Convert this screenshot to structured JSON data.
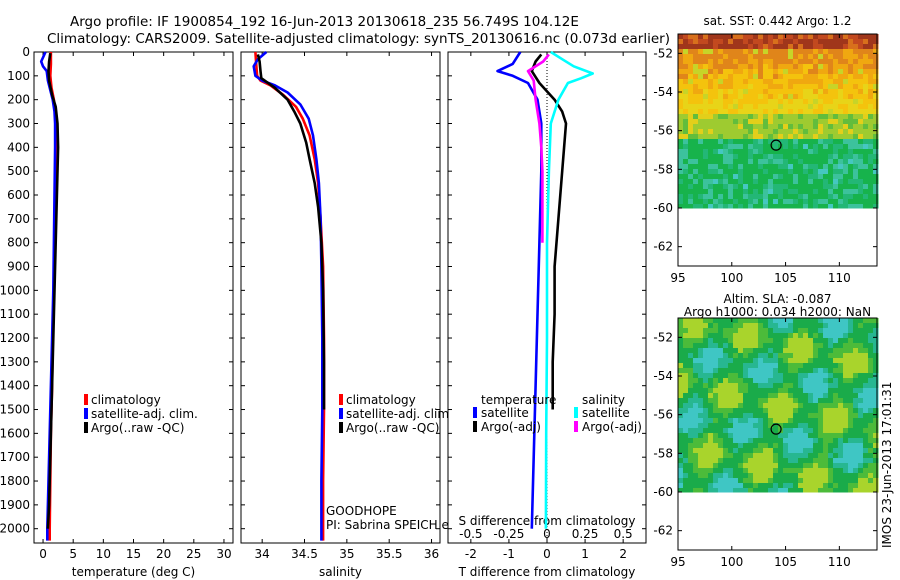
{
  "title_line1": "Argo profile: IF 1900854_192 16-Jun-2013 20130618_235 56.749S 104.12E",
  "title_line2": "Climatology: CARS2009. Satellite-adjusted climatology: synTS_20130616.nc (0.073d earlier)",
  "colors": {
    "climatology": "#ff0000",
    "satellite": "#0000ff",
    "argo": "#000000",
    "satellite_s": "#00ffff",
    "argo_s": "#ff00ff"
  },
  "chart_data": [
    {
      "id": "temperature",
      "type": "line",
      "xlabel": "temperature (deg C)",
      "xlim": [
        -1.5,
        31.5
      ],
      "xticks": [
        0,
        5,
        10,
        15,
        20,
        25,
        30
      ],
      "ylim": [
        0,
        2060
      ],
      "yticks": [
        0,
        100,
        200,
        300,
        400,
        500,
        600,
        700,
        800,
        900,
        1000,
        1100,
        1200,
        1300,
        1400,
        1500,
        1600,
        1700,
        1800,
        1900,
        2000
      ],
      "legend": [
        "climatology",
        "satellite-adj. clim.",
        "Argo(..raw -QC)"
      ],
      "series": [
        {
          "name": "climatology",
          "color": "#ff0000",
          "points": [
            [
              1.3,
              0
            ],
            [
              1.3,
              50
            ],
            [
              1.2,
              100
            ],
            [
              1.4,
              150
            ],
            [
              1.8,
              200
            ],
            [
              2.0,
              250
            ],
            [
              2.1,
              300
            ],
            [
              2.1,
              400
            ],
            [
              2.0,
              600
            ],
            [
              1.9,
              800
            ],
            [
              1.8,
              1000
            ],
            [
              1.6,
              1200
            ],
            [
              1.5,
              1400
            ],
            [
              1.3,
              1600
            ],
            [
              1.2,
              1800
            ],
            [
              1.1,
              2000
            ],
            [
              1.1,
              2050
            ]
          ]
        },
        {
          "name": "satellite-adj. clim.",
          "color": "#0000ff",
          "points": [
            [
              0.4,
              0
            ],
            [
              -0.3,
              40
            ],
            [
              0.0,
              60
            ],
            [
              0.6,
              80
            ],
            [
              0.8,
              120
            ],
            [
              1.6,
              200
            ],
            [
              1.9,
              250
            ],
            [
              2.0,
              300
            ],
            [
              2.0,
              400
            ],
            [
              1.9,
              600
            ],
            [
              1.8,
              800
            ],
            [
              1.7,
              1000
            ],
            [
              1.5,
              1200
            ],
            [
              1.3,
              1400
            ],
            [
              1.1,
              1600
            ],
            [
              0.9,
              1800
            ],
            [
              0.7,
              2000
            ],
            [
              0.7,
              2050
            ]
          ]
        },
        {
          "name": "Argo(..raw -QC)",
          "color": "#000000",
          "points": [
            [
              1.2,
              5
            ],
            [
              1.0,
              40
            ],
            [
              0.9,
              80
            ],
            [
              1.0,
              120
            ],
            [
              1.5,
              180
            ],
            [
              2.1,
              230
            ],
            [
              2.4,
              300
            ],
            [
              2.5,
              400
            ],
            [
              2.4,
              500
            ],
            [
              2.2,
              700
            ],
            [
              2.0,
              900
            ],
            [
              1.8,
              1100
            ],
            [
              1.6,
              1300
            ],
            [
              1.4,
              1500
            ],
            [
              1.2,
              1700
            ],
            [
              1.0,
              1900
            ],
            [
              0.8,
              2000
            ]
          ]
        }
      ]
    },
    {
      "id": "salinity",
      "type": "line",
      "xlabel": "salinity",
      "xlim": [
        33.75,
        36.1
      ],
      "xticks": [
        34,
        34.5,
        35,
        35.5,
        36
      ],
      "ylim": [
        0,
        2060
      ],
      "legend": [
        "climatology",
        "satellite-adj. clim.",
        "Argo(..raw -QC)"
      ],
      "footer": [
        "GOODHOPE",
        "PI: Sabrina SPEICH et Michel ARHAN"
      ],
      "series": [
        {
          "name": "climatology",
          "color": "#ff0000",
          "points": [
            [
              33.92,
              0
            ],
            [
              33.93,
              50
            ],
            [
              33.94,
              100
            ],
            [
              33.98,
              120
            ],
            [
              34.1,
              140
            ],
            [
              34.25,
              180
            ],
            [
              34.4,
              230
            ],
            [
              34.48,
              280
            ],
            [
              34.56,
              350
            ],
            [
              34.62,
              450
            ],
            [
              34.66,
              550
            ],
            [
              34.69,
              700
            ],
            [
              34.72,
              900
            ],
            [
              34.73,
              1200
            ],
            [
              34.73,
              1500
            ],
            [
              34.72,
              1800
            ],
            [
              34.72,
              2050
            ]
          ]
        },
        {
          "name": "satellite-adj. clim.",
          "color": "#0000ff",
          "points": [
            [
              34.05,
              0
            ],
            [
              33.95,
              30
            ],
            [
              33.9,
              60
            ],
            [
              33.92,
              100
            ],
            [
              34.0,
              120
            ],
            [
              34.15,
              140
            ],
            [
              34.3,
              170
            ],
            [
              34.45,
              220
            ],
            [
              34.55,
              280
            ],
            [
              34.6,
              350
            ],
            [
              34.64,
              450
            ],
            [
              34.67,
              550
            ],
            [
              34.69,
              700
            ],
            [
              34.7,
              900
            ],
            [
              34.71,
              1200
            ],
            [
              34.71,
              1500
            ],
            [
              34.7,
              1800
            ],
            [
              34.7,
              2050
            ]
          ]
        },
        {
          "name": "Argo(..raw -QC)",
          "color": "#000000",
          "points": [
            [
              33.95,
              10
            ],
            [
              33.97,
              40
            ],
            [
              33.98,
              80
            ],
            [
              33.99,
              110
            ],
            [
              34.05,
              125
            ],
            [
              34.15,
              150
            ],
            [
              34.3,
              200
            ],
            [
              34.38,
              250
            ],
            [
              34.45,
              300
            ],
            [
              34.52,
              380
            ],
            [
              34.56,
              450
            ],
            [
              34.62,
              550
            ],
            [
              34.66,
              650
            ],
            [
              34.7,
              800
            ],
            [
              34.72,
              1000
            ],
            [
              34.73,
              1300
            ],
            [
              34.73,
              1500
            ]
          ]
        }
      ]
    },
    {
      "id": "difference",
      "type": "line",
      "xlabel": "T difference from climatology",
      "xlabel2": "S difference from climatology",
      "xlim": [
        -2.6,
        2.6
      ],
      "xticks": [
        -2,
        -1,
        0,
        1,
        2
      ],
      "xticks2": [
        "-0.5",
        "-0.25",
        "0",
        "0.25",
        "0.5"
      ],
      "ylim": [
        0,
        2060
      ],
      "legend_headers": [
        "temperature",
        "salinity"
      ],
      "legend": [
        "satellite",
        "Argo(-adj)",
        "satellite",
        "Argo(-adj)"
      ],
      "series": [
        {
          "name": "temperature satellite",
          "color": "#0000ff",
          "points": [
            [
              -0.7,
              0
            ],
            [
              -0.9,
              50
            ],
            [
              -1.3,
              80
            ],
            [
              -0.9,
              100
            ],
            [
              -0.5,
              130
            ],
            [
              -0.25,
              200
            ],
            [
              -0.15,
              300
            ],
            [
              -0.15,
              500
            ],
            [
              -0.2,
              800
            ],
            [
              -0.25,
              1100
            ],
            [
              -0.3,
              1400
            ],
            [
              -0.35,
              1700
            ],
            [
              -0.4,
              2000
            ]
          ]
        },
        {
          "name": "temperature Argo(-adj)",
          "color": "#000000",
          "points": [
            [
              -0.15,
              10
            ],
            [
              -0.3,
              40
            ],
            [
              -0.4,
              80
            ],
            [
              -0.2,
              130
            ],
            [
              0.2,
              200
            ],
            [
              0.4,
              250
            ],
            [
              0.5,
              300
            ],
            [
              0.45,
              400
            ],
            [
              0.4,
              500
            ],
            [
              0.3,
              700
            ],
            [
              0.2,
              900
            ],
            [
              0.2,
              1100
            ],
            [
              0.15,
              1300
            ],
            [
              0.15,
              1500
            ]
          ]
        },
        {
          "name": "salinity satellite",
          "color": "#00ffff",
          "points": [
            [
              0.1,
              0
            ],
            [
              0.4,
              30
            ],
            [
              0.7,
              60
            ],
            [
              1.2,
              90
            ],
            [
              0.9,
              110
            ],
            [
              0.55,
              130
            ],
            [
              0.3,
              200
            ],
            [
              0.1,
              300
            ],
            [
              0.05,
              500
            ],
            [
              0.0,
              800
            ],
            [
              0.0,
              1200
            ],
            [
              -0.02,
              1600
            ],
            [
              -0.03,
              2000
            ]
          ]
        },
        {
          "name": "salinity Argo(-adj)",
          "color": "#ff00ff",
          "points": [
            [
              0.05,
              10
            ],
            [
              -0.1,
              40
            ],
            [
              -0.5,
              80
            ],
            [
              -0.35,
              120
            ],
            [
              -0.3,
              200
            ],
            [
              -0.2,
              300
            ],
            [
              -0.15,
              400
            ],
            [
              -0.12,
              500
            ],
            [
              -0.12,
              600
            ],
            [
              -0.12,
              800
            ]
          ]
        }
      ]
    },
    {
      "id": "sst_map",
      "type": "heatmap",
      "title": "sat. SST: 0.442 Argo: 1.2",
      "xlim": [
        95,
        113.5
      ],
      "ylim": [
        -63,
        -51
      ],
      "xticks": [
        95,
        100,
        105,
        110
      ],
      "yticks": [
        -52,
        -54,
        -56,
        -58,
        -60,
        -62
      ],
      "marker": [
        104.12,
        -56.749
      ],
      "data_extent_lat": [
        -60,
        -51
      ]
    },
    {
      "id": "sla_map",
      "type": "heatmap",
      "title": "Altim. SLA: -0.087",
      "subtitle": "Argo h1000: 0.034 h2000: NaN",
      "xlim": [
        95,
        113.5
      ],
      "ylim": [
        -63,
        -51
      ],
      "xticks": [
        95,
        100,
        105,
        110
      ],
      "yticks": [
        -52,
        -54,
        -56,
        -58,
        -60,
        -62
      ],
      "marker": [
        104.12,
        -56.749
      ],
      "data_extent_lat": [
        -60,
        -51
      ]
    }
  ],
  "stamp": "IMOS 23-Jun-2013 17:01:31"
}
